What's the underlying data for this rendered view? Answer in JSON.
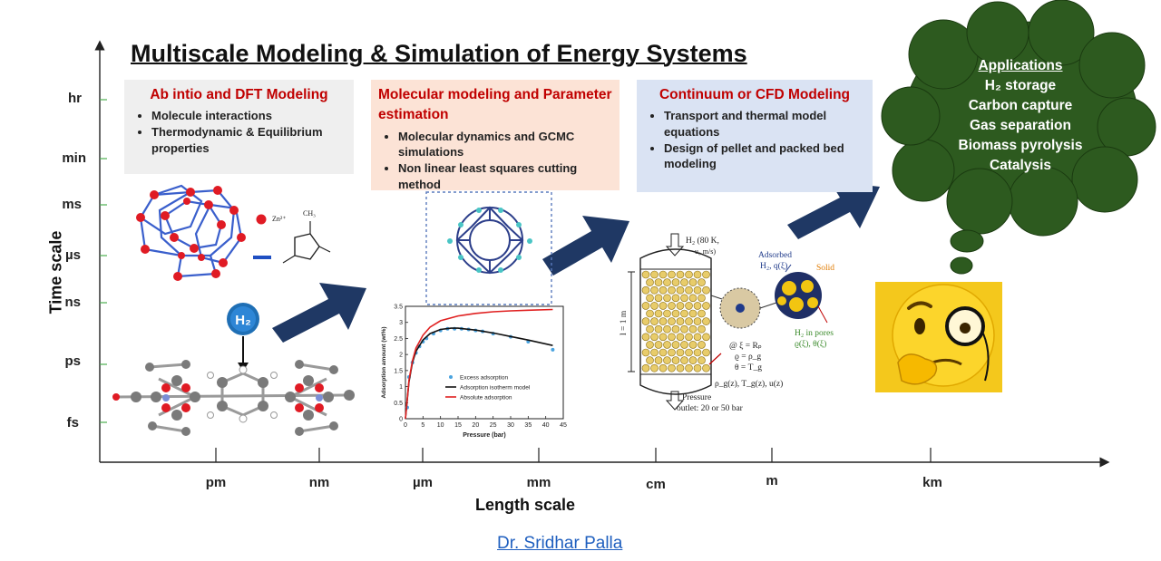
{
  "title": "Multiscale Modeling & Simulation of Energy Systems",
  "axes": {
    "y_label": "Time scale",
    "x_label": "Length scale",
    "y_ticks": [
      "hr",
      "min",
      "ms",
      "µs",
      "ns",
      "ps",
      "fs"
    ],
    "x_ticks": [
      "pm",
      "nm",
      "µm",
      "mm",
      "cm",
      "m",
      "km"
    ]
  },
  "boxes": [
    {
      "title": "Ab intio and DFT Modeling",
      "bullets": [
        "Molecule interactions",
        "Thermodynamic & Equilibrium properties"
      ]
    },
    {
      "title": "Molecular modeling and Parameter estimation",
      "bullets": [
        "Molecular dynamics and GCMC simulations",
        "Non linear least squares cutting method"
      ]
    },
    {
      "title": "Continuum or CFD Modeling",
      "bullets": [
        "Transport and thermal model equations",
        "Design of pellet and packed bed modeling"
      ]
    }
  ],
  "applications": {
    "heading": "Applications",
    "items": [
      "H₂ storage",
      "Carbon capture",
      "Gas separation",
      "Biomass pyrolysis",
      "Catalysis"
    ]
  },
  "molecule_labels": {
    "zn": "Zn²⁺",
    "ch3": "CH₃",
    "h2": "H₂"
  },
  "chart_data": {
    "type": "line",
    "xlabel": "Pressure (bar)",
    "ylabel": "Adsorption amount (wt%)",
    "xlim": [
      0,
      45
    ],
    "ylim": [
      0,
      3.5
    ],
    "x_ticks": [
      "0",
      "5",
      "10",
      "15",
      "20",
      "25",
      "30",
      "35",
      "40",
      "45"
    ],
    "y_ticks": [
      "0",
      "0.5",
      "1",
      "1.5",
      "2",
      "2.5",
      "3",
      "3.5"
    ],
    "series": [
      {
        "name": "Excess adsorption",
        "type": "scatter",
        "color": "#4aa3df",
        "x": [
          0.5,
          1,
          2,
          3,
          4,
          5,
          6,
          8,
          10,
          12,
          14,
          16,
          18,
          20,
          22,
          25,
          30,
          35,
          42
        ],
        "y": [
          0.35,
          1.3,
          1.75,
          2.05,
          2.25,
          2.4,
          2.5,
          2.65,
          2.75,
          2.8,
          2.8,
          2.8,
          2.78,
          2.75,
          2.72,
          2.65,
          2.55,
          2.4,
          2.15
        ]
      },
      {
        "name": "Adsorption isotherm model",
        "type": "line",
        "color": "#111111",
        "x": [
          0,
          1,
          2,
          3,
          5,
          7,
          10,
          13,
          15,
          20,
          25,
          30,
          35,
          42
        ],
        "y": [
          0,
          1.15,
          1.75,
          2.1,
          2.45,
          2.65,
          2.78,
          2.82,
          2.82,
          2.76,
          2.67,
          2.56,
          2.45,
          2.28
        ]
      },
      {
        "name": "Absolute adsorption",
        "type": "line",
        "color": "#e02020",
        "x": [
          0,
          1,
          2,
          3,
          5,
          7,
          10,
          15,
          20,
          25,
          30,
          35,
          42
        ],
        "y": [
          0,
          1.2,
          1.8,
          2.2,
          2.6,
          2.85,
          3.05,
          3.2,
          3.28,
          3.33,
          3.36,
          3.38,
          3.4
        ]
      }
    ]
  },
  "reactor_labels": {
    "inlet": "H₂ (80 K,",
    "inlet2": "u₀ m/s)",
    "adsorbed": "Adsorbed",
    "adsorbed2": "H₂, q(ξ)",
    "solid": "Solid",
    "pores": "H₂ in pores",
    "pores2": "ϱ(ξ), θ(ξ)",
    "length": "l = 1 m",
    "bc1": "@ ξ = Rₚ",
    "bc2": "ϱ = ρ_g",
    "bc3": "θ = T_g",
    "fields": "ρ_g(z), T_g(z), u(z)",
    "outlet": "Pressure",
    "outlet2": "outlet: 20 or 50 bar"
  },
  "author": "Dr. Sridhar Palla",
  "colors": {
    "arrow": "#1f3864",
    "cloud": "#2d5a1f",
    "box_title": "#c00000",
    "link": "#1f5fbf"
  }
}
